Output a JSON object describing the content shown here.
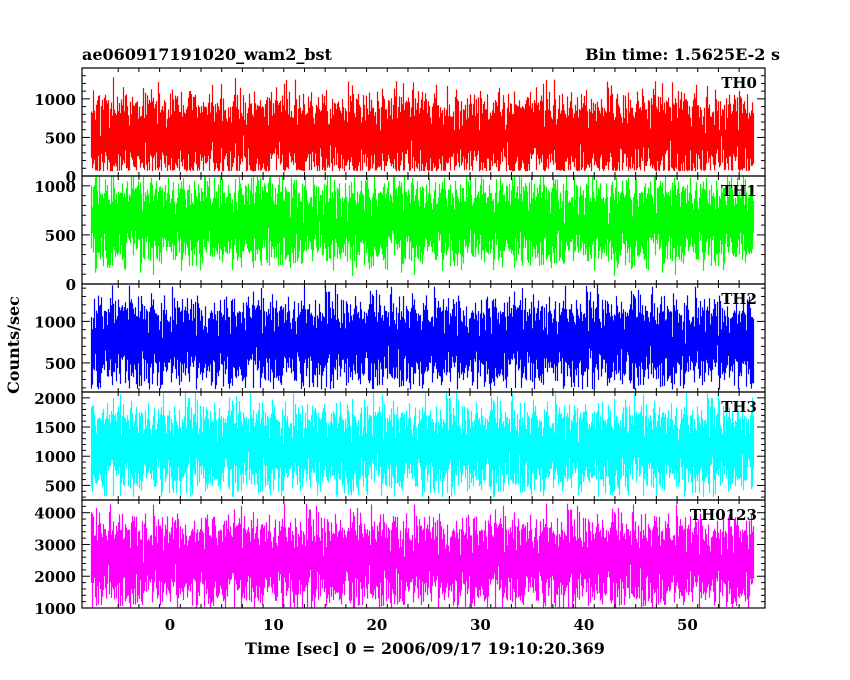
{
  "header": {
    "title": "ae060917191020_wam2_bst",
    "bin_time": "Bin time: 1.5625E-2 s"
  },
  "chart_data": {
    "type": "line",
    "title": "ae060917191020_wam2_bst",
    "xlabel": "Time [sec] 0 = 2006/09/17 19:10:20.369",
    "ylabel": "Counts/sec",
    "xlim": [
      -8.5,
      57.5
    ],
    "x_ticks": [
      0,
      10,
      20,
      30,
      40,
      50
    ],
    "x_tick_labels": [
      "0",
      "10",
      "20",
      "30",
      "40",
      "50"
    ],
    "x_range_data": [
      -7.6,
      56.3
    ],
    "bin_time_s": 0.015625,
    "legend": "none",
    "grid": false,
    "panels": [
      {
        "name": "TH0",
        "color": "#ff0000",
        "ylim": [
          0,
          1400
        ],
        "y_ticks": [
          0,
          500,
          1000
        ],
        "y_tick_labels": [
          "0",
          "500",
          "1000"
        ],
        "mean": 520,
        "lower_envelope": 60,
        "upper_envelope": 1400
      },
      {
        "name": "TH1",
        "color": "#00ff00",
        "ylim": [
          0,
          1100
        ],
        "y_ticks": [
          0,
          500,
          1000
        ],
        "y_tick_labels": [
          "0",
          "500",
          "1000"
        ],
        "mean": 640,
        "lower_envelope": 50,
        "upper_envelope": 1100
      },
      {
        "name": "TH2",
        "color": "#0000ff",
        "ylim": [
          150,
          1450
        ],
        "y_ticks": [
          500,
          1000
        ],
        "y_tick_labels": [
          "500",
          "1000"
        ],
        "mean": 760,
        "lower_envelope": 180,
        "upper_envelope": 1450
      },
      {
        "name": "TH3",
        "color": "#00ffff",
        "ylim": [
          250,
          2100
        ],
        "y_ticks": [
          500,
          1000,
          1500,
          2000
        ],
        "y_tick_labels": [
          "500",
          "1000",
          "1500",
          "2000"
        ],
        "mean": 1150,
        "lower_envelope": 300,
        "upper_envelope": 2100
      },
      {
        "name": "TH0123",
        "color": "#ff00ff",
        "ylim": [
          1000,
          4400
        ],
        "y_ticks": [
          1000,
          2000,
          3000,
          4000
        ],
        "y_tick_labels": [
          "1000",
          "2000",
          "3000",
          "4000"
        ],
        "mean": 2500,
        "lower_envelope": 1000,
        "upper_envelope": 4400
      }
    ]
  }
}
